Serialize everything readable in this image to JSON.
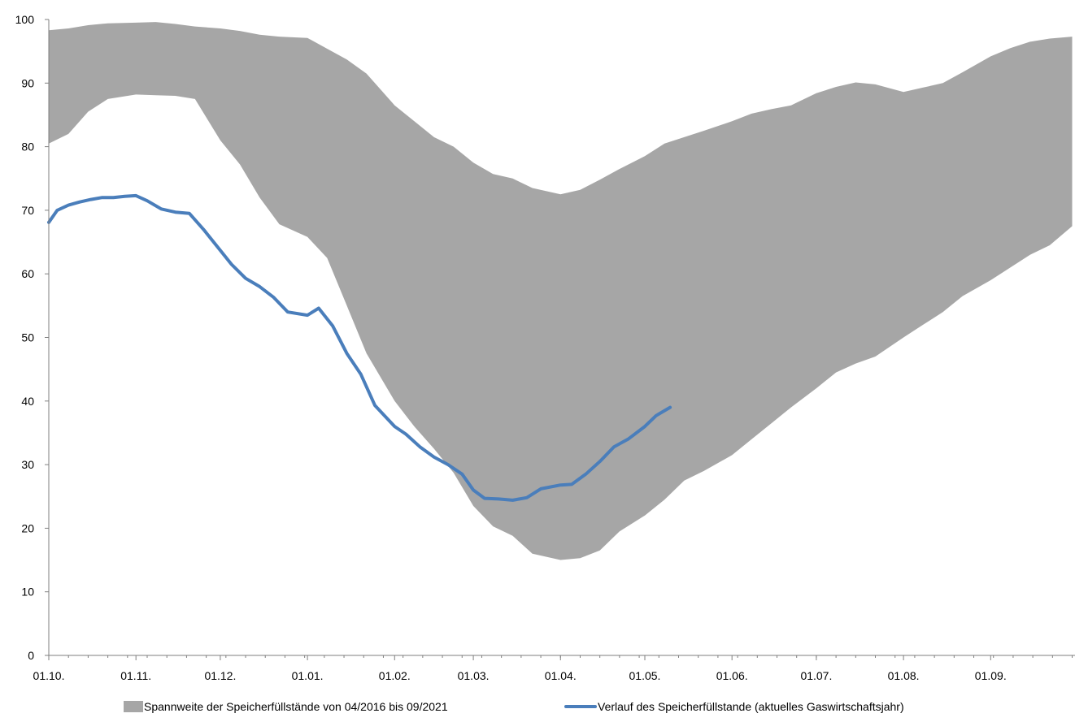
{
  "colors": {
    "band": "#a6a6a6",
    "line": "#4a7ebb",
    "axis": "#7f7f7f",
    "text": "#000000"
  },
  "chart_data": {
    "type": "area",
    "x_type": "date",
    "xlim": [
      "01.10.",
      "30.09."
    ],
    "ylim": [
      0,
      100
    ],
    "y_ticks": [
      0,
      10,
      20,
      30,
      40,
      50,
      60,
      70,
      80,
      90,
      100
    ],
    "x_ticks": [
      "01.10.",
      "01.11.",
      "01.12.",
      "01.01.",
      "01.02.",
      "01.03.",
      "01.04.",
      "01.05.",
      "01.06.",
      "01.07.",
      "01.08.",
      "01.09."
    ],
    "grid": false,
    "legend_position": "bottom",
    "series": [
      {
        "name": "Spannweite der Speicherfüllstände von 04/2016 bis 09/2021",
        "kind": "band",
        "x": [
          "01.10.",
          "08.10.",
          "15.10.",
          "22.10.",
          "01.11.",
          "08.11.",
          "15.11.",
          "22.11.",
          "01.12.",
          "08.12.",
          "15.12.",
          "22.12.",
          "01.01.",
          "08.01.",
          "15.01.",
          "22.01.",
          "01.02.",
          "08.02.",
          "15.02.",
          "22.02.",
          "01.03.",
          "08.03.",
          "15.03.",
          "22.03.",
          "01.04.",
          "08.04.",
          "15.04.",
          "22.04.",
          "01.05.",
          "08.05.",
          "15.05.",
          "22.05.",
          "01.06.",
          "08.06.",
          "15.06.",
          "22.06.",
          "01.07.",
          "08.07.",
          "15.07.",
          "22.07.",
          "01.08.",
          "08.08.",
          "15.08.",
          "22.08.",
          "01.09.",
          "08.09.",
          "15.09.",
          "22.09.",
          "30.09."
        ],
        "upper": [
          98.3,
          98.6,
          99.1,
          99.4,
          99.5,
          99.6,
          99.3,
          98.9,
          98.6,
          98.2,
          97.6,
          97.3,
          97.1,
          95.4,
          93.7,
          91.5,
          86.5,
          84.0,
          81.5,
          80.0,
          77.5,
          75.7,
          75.0,
          73.5,
          72.5,
          73.2,
          74.8,
          76.5,
          78.5,
          80.5,
          81.5,
          82.5,
          84.0,
          85.2,
          85.9,
          86.5,
          88.4,
          89.4,
          90.1,
          89.8,
          88.6,
          89.3,
          90.0,
          91.7,
          94.2,
          95.5,
          96.5,
          97.0,
          97.3
        ],
        "lower": [
          80.5,
          82.0,
          85.5,
          87.5,
          88.2,
          88.1,
          88.0,
          87.5,
          81.0,
          77.2,
          72.0,
          67.8,
          65.8,
          62.5,
          55.0,
          47.5,
          40.0,
          36.0,
          32.5,
          28.7,
          23.5,
          20.3,
          18.8,
          16.0,
          15.0,
          15.3,
          16.5,
          19.5,
          22.0,
          24.5,
          27.5,
          29.0,
          31.5,
          34.0,
          36.5,
          39.0,
          42.0,
          44.5,
          45.9,
          47.0,
          50.0,
          52.0,
          54.0,
          56.5,
          59.0,
          61.0,
          63.0,
          64.5,
          67.5
        ]
      },
      {
        "name": "Verlauf des Speicherfüllstande (aktuelles Gaswirtschaftsjahr)",
        "kind": "line",
        "x": [
          "01.10.",
          "04.10.",
          "08.10.",
          "12.10.",
          "16.10.",
          "20.10.",
          "24.10.",
          "28.10.",
          "01.11.",
          "05.11.",
          "10.11.",
          "15.11.",
          "20.11.",
          "25.11.",
          "01.12.",
          "05.12.",
          "10.12.",
          "15.12.",
          "20.12.",
          "25.12.",
          "01.01.",
          "05.01.",
          "10.01.",
          "15.01.",
          "20.01.",
          "25.01.",
          "01.02.",
          "05.02.",
          "10.02.",
          "15.02.",
          "20.02.",
          "25.02.",
          "01.03.",
          "05.03.",
          "10.03.",
          "15.03.",
          "20.03.",
          "25.03.",
          "01.04.",
          "05.04.",
          "10.04.",
          "15.04.",
          "20.04.",
          "25.04.",
          "01.05.",
          "05.05.",
          "10.05."
        ],
        "values": [
          68.1,
          70.0,
          70.8,
          71.3,
          71.7,
          72.0,
          72.0,
          72.2,
          72.3,
          71.5,
          70.2,
          69.7,
          69.5,
          67.0,
          63.7,
          61.5,
          59.3,
          58.0,
          56.3,
          54.0,
          53.5,
          54.6,
          51.8,
          47.5,
          44.2,
          39.3,
          36.0,
          34.8,
          32.8,
          31.2,
          30.0,
          28.5,
          26.0,
          24.7,
          24.6,
          24.4,
          24.8,
          26.2,
          26.8,
          26.9,
          28.5,
          30.5,
          32.8,
          34.0,
          36.0,
          37.7,
          39.0
        ]
      }
    ]
  }
}
